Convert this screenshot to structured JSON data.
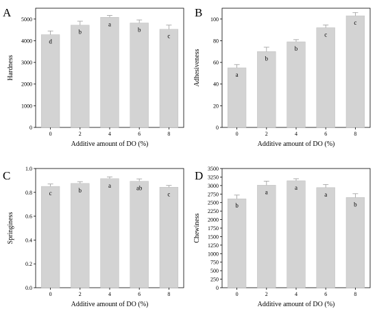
{
  "chart_data": [
    {
      "panel": "A",
      "type": "bar",
      "categories": [
        "0",
        "2",
        "4",
        "6",
        "8"
      ],
      "values": [
        4280,
        4720,
        5080,
        4820,
        4530
      ],
      "errors": [
        170,
        180,
        90,
        140,
        190
      ],
      "letters": [
        "d",
        "b",
        "a",
        "b",
        "c"
      ],
      "xlabel": "Additive amount of DO (%)",
      "ylabel": "Hardness",
      "ylim": [
        0,
        5500
      ],
      "yticks": [
        "0",
        "1000",
        "2000",
        "3000",
        "4000",
        "5000"
      ],
      "grid": false,
      "bar_color": "#d3d3d3"
    },
    {
      "panel": "B",
      "type": "bar",
      "categories": [
        "0",
        "2",
        "4",
        "6",
        "8"
      ],
      "values": [
        55,
        70,
        79,
        92,
        103
      ],
      "errors": [
        3,
        4,
        2,
        2.5,
        3
      ],
      "letters": [
        "a",
        "b",
        "b",
        "c",
        "c"
      ],
      "xlabel": "Additive amount of DO (%)",
      "ylabel": "Adhesiveness",
      "ylim": [
        0,
        110
      ],
      "yticks": [
        "0",
        "20",
        "40",
        "60",
        "80",
        "100"
      ],
      "grid": false,
      "bar_color": "#d3d3d3"
    },
    {
      "panel": "C",
      "type": "bar",
      "categories": [
        "0",
        "2",
        "4",
        "6",
        "8"
      ],
      "values": [
        0.85,
        0.875,
        0.915,
        0.893,
        0.843
      ],
      "errors": [
        0.02,
        0.015,
        0.015,
        0.02,
        0.015
      ],
      "letters": [
        "c",
        "b",
        "a",
        "ab",
        "c"
      ],
      "xlabel": "Additive amount of DO (%)",
      "ylabel": "Springiness",
      "ylim": [
        0,
        1.0
      ],
      "yticks": [
        "0.0",
        "0.2",
        "0.4",
        "0.6",
        "0.8",
        "1.0"
      ],
      "grid": false,
      "bar_color": "#d3d3d3"
    },
    {
      "panel": "D",
      "type": "bar",
      "categories": [
        "0",
        "2",
        "4",
        "6",
        "8"
      ],
      "values": [
        2610,
        3010,
        3140,
        2940,
        2650
      ],
      "errors": [
        110,
        120,
        60,
        90,
        110
      ],
      "letters": [
        "b",
        "a",
        "a",
        "a",
        "b"
      ],
      "xlabel": "Additive amount of DO (%)",
      "ylabel": "Chewiness",
      "ylim": [
        0,
        3500
      ],
      "yticks": [
        "0",
        "250",
        "500",
        "750",
        "1000",
        "1250",
        "1500",
        "1750",
        "2000",
        "2250",
        "2500",
        "2750",
        "3000",
        "3250",
        "3500"
      ],
      "grid": false,
      "bar_color": "#d3d3d3"
    }
  ]
}
